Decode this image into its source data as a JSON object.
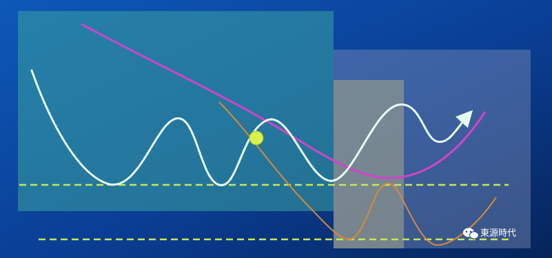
{
  "chart_data": {
    "type": "line",
    "title": "",
    "xlabel": "",
    "ylabel": "",
    "grid": false,
    "legend": "none",
    "colors": {
      "background": "#0a3c8c",
      "price": "#e8fff6",
      "downtrend": "#d244c8",
      "oscillator": "#d88a3a",
      "support_dash": "#c8e858",
      "annotation": "#d23a3a",
      "ball": "#d7f34b"
    },
    "series": [],
    "annotations": [],
    "watermark": "東源時代",
    "watermark_icon": "wechat-icon"
  }
}
